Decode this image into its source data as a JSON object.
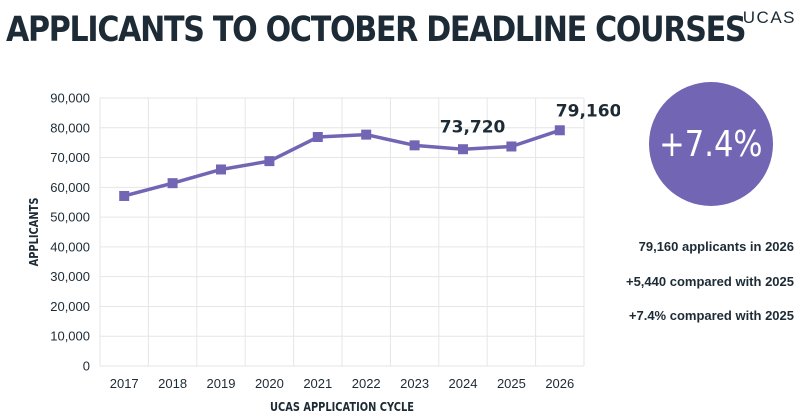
{
  "header": {
    "title": "APPLICANTS TO OCTOBER DEADLINE COURSES",
    "logo": "UCAS"
  },
  "summary": {
    "circle_text": "+7.4%",
    "stats": [
      "79,160 applicants in 2026",
      "+5,440 compared with 2025",
      "+7.4% compared with 2025"
    ]
  },
  "colors": {
    "accent": "#7265b4",
    "text": "#1c2b36",
    "grid": "#e6e6e6"
  },
  "chart_data": {
    "type": "line",
    "categories": [
      "2017",
      "2018",
      "2019",
      "2020",
      "2021",
      "2022",
      "2023",
      "2024",
      "2025",
      "2026"
    ],
    "series": [
      {
        "values": [
          57100,
          61400,
          66000,
          68800,
          76900,
          77700,
          74100,
          72800,
          73720,
          79160
        ]
      }
    ],
    "data_labels": [
      {
        "index": 8,
        "text": "73,720"
      },
      {
        "index": 9,
        "text": "79,160"
      }
    ],
    "xlabel": "UCAS APPLICATION CYCLE",
    "ylabel": "APPLICANTS",
    "ylim": [
      0,
      90000
    ],
    "yticks": [
      0,
      10000,
      20000,
      30000,
      40000,
      50000,
      60000,
      70000,
      80000,
      90000
    ],
    "ytick_labels": [
      "0",
      "10,000",
      "20,000",
      "30,000",
      "40,000",
      "50,000",
      "60,000",
      "70,000",
      "80,000",
      "90,000"
    ],
    "grid": true,
    "marker": "square"
  }
}
